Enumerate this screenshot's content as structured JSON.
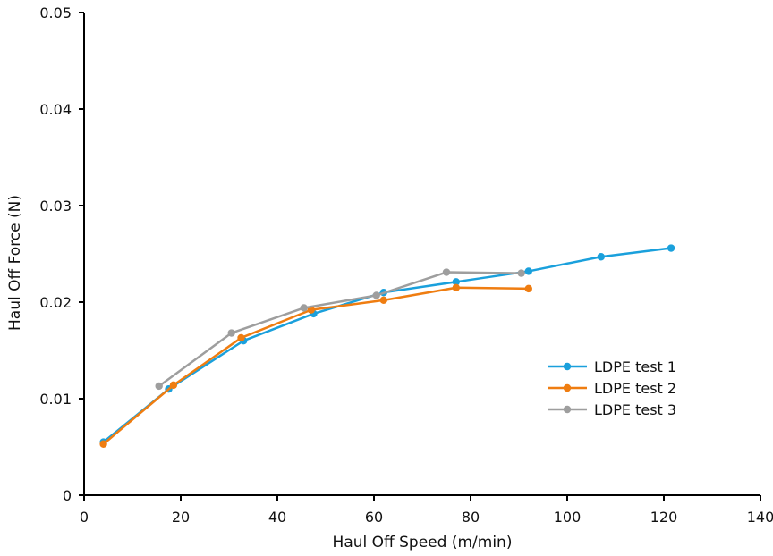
{
  "chart_data": {
    "type": "line",
    "title": "",
    "xlabel": "Haul Off Speed (m/min)",
    "ylabel": "Haul Off Force (N)",
    "xlim": [
      0,
      140
    ],
    "ylim": [
      0,
      0.05
    ],
    "x_ticks": [
      "0",
      "20",
      "40",
      "60",
      "80",
      "100",
      "120",
      "140"
    ],
    "y_ticks": [
      "0",
      "0.01",
      "0.02",
      "0.03",
      "0.04",
      "0.05"
    ],
    "grid": false,
    "legend_position": "right",
    "series": [
      {
        "name": "LDPE test 1",
        "color": "#1aa0dc",
        "points": [
          [
            4,
            0.0055
          ],
          [
            17.5,
            0.011
          ],
          [
            33,
            0.016
          ],
          [
            47.5,
            0.0188
          ],
          [
            62,
            0.021
          ],
          [
            77,
            0.0221
          ],
          [
            92,
            0.0232
          ],
          [
            107,
            0.0247
          ],
          [
            121.5,
            0.0256
          ]
        ]
      },
      {
        "name": "LDPE test 2",
        "color": "#ef7d11",
        "points": [
          [
            4,
            0.0053
          ],
          [
            18.5,
            0.0114
          ],
          [
            32.5,
            0.0163
          ],
          [
            47,
            0.0192
          ],
          [
            62,
            0.0202
          ],
          [
            77,
            0.0215
          ],
          [
            92,
            0.0214
          ]
        ]
      },
      {
        "name": "LDPE test 3",
        "color": "#9e9e9e",
        "points": [
          [
            15.5,
            0.0113
          ],
          [
            30.5,
            0.0168
          ],
          [
            45.5,
            0.0194
          ],
          [
            60.5,
            0.0207
          ],
          [
            75,
            0.0231
          ],
          [
            90.5,
            0.023
          ]
        ]
      }
    ]
  }
}
